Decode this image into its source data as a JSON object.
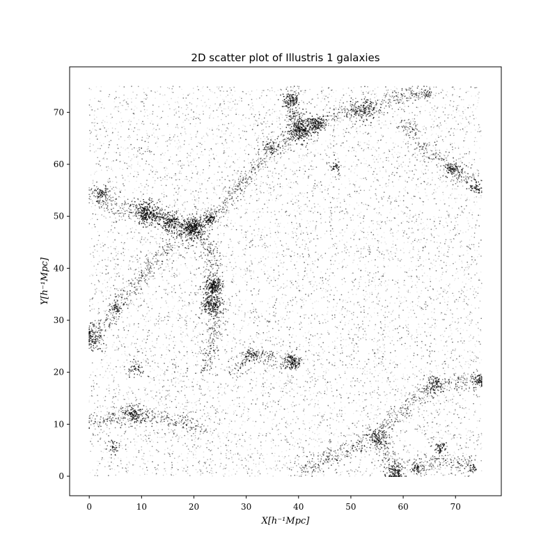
{
  "chart_data": {
    "type": "scatter",
    "title": "2D scatter plot of Illustris 1 galaxies",
    "xlabel": "X[h⁻¹Mpc]",
    "ylabel": "Y[h⁻¹Mpc]",
    "xlim": [
      -3.75,
      78.75
    ],
    "ylim": [
      -3.75,
      78.75
    ],
    "xticks": [
      0,
      10,
      20,
      30,
      40,
      50,
      60,
      70
    ],
    "yticks": [
      0,
      10,
      20,
      30,
      40,
      50,
      60,
      70
    ],
    "grid": false,
    "legend": "none",
    "marker_color": "#000000",
    "data_domain": [
      0,
      75
    ],
    "clusters": [
      {
        "x": 11,
        "y": 50.5,
        "r": 1.2,
        "n": 260
      },
      {
        "x": 15.5,
        "y": 49,
        "r": 1.0,
        "n": 160
      },
      {
        "x": 20,
        "y": 47.8,
        "r": 1.1,
        "n": 260
      },
      {
        "x": 23.8,
        "y": 36.5,
        "r": 0.9,
        "n": 180
      },
      {
        "x": 23.5,
        "y": 33,
        "r": 1.0,
        "n": 180
      },
      {
        "x": 40.3,
        "y": 66.8,
        "r": 1.2,
        "n": 260
      },
      {
        "x": 43.5,
        "y": 67.8,
        "r": 0.8,
        "n": 120
      },
      {
        "x": 38.5,
        "y": 72,
        "r": 0.8,
        "n": 110
      },
      {
        "x": 38.8,
        "y": 22,
        "r": 0.8,
        "n": 120
      },
      {
        "x": 58.5,
        "y": 0.7,
        "r": 1.0,
        "n": 130
      },
      {
        "x": 52.5,
        "y": 70.5,
        "r": 1.2,
        "n": 120
      },
      {
        "x": 69.5,
        "y": 59,
        "r": 0.8,
        "n": 80
      },
      {
        "x": 8.5,
        "y": 12,
        "r": 1.0,
        "n": 110
      },
      {
        "x": 55,
        "y": 7.5,
        "r": 0.9,
        "n": 90
      },
      {
        "x": 66,
        "y": 17.5,
        "r": 0.9,
        "n": 80
      },
      {
        "x": 74.5,
        "y": 18.5,
        "r": 0.7,
        "n": 60
      },
      {
        "x": 1,
        "y": 26.5,
        "r": 1.2,
        "n": 100
      },
      {
        "x": 67,
        "y": 5.5,
        "r": 0.6,
        "n": 50
      },
      {
        "x": 31,
        "y": 23.5,
        "r": 0.6,
        "n": 45
      },
      {
        "x": 5,
        "y": 32.3,
        "r": 0.5,
        "n": 35
      },
      {
        "x": 23,
        "y": 49.5,
        "r": 0.6,
        "n": 70
      },
      {
        "x": 2.5,
        "y": 54.5,
        "r": 0.7,
        "n": 55
      },
      {
        "x": 74,
        "y": 55.5,
        "r": 0.6,
        "n": 45
      },
      {
        "x": 47,
        "y": 59.5,
        "r": 0.6,
        "n": 40
      },
      {
        "x": 34.5,
        "y": 63.5,
        "r": 0.7,
        "n": 45
      },
      {
        "x": 9,
        "y": 20.5,
        "r": 0.7,
        "n": 45
      },
      {
        "x": 4.5,
        "y": 5.5,
        "r": 0.6,
        "n": 40
      },
      {
        "x": 62.5,
        "y": 1.5,
        "r": 0.6,
        "n": 45
      },
      {
        "x": 73,
        "y": 1.8,
        "r": 0.5,
        "n": 30
      },
      {
        "x": 64.5,
        "y": 73.5,
        "r": 0.5,
        "n": 30
      }
    ],
    "filaments": [
      [
        [
          0,
          54.5
        ],
        [
          6,
          51.5
        ],
        [
          11,
          50.5
        ],
        [
          16,
          49
        ],
        [
          20,
          48
        ],
        [
          23,
          49.5
        ]
      ],
      [
        [
          20,
          48
        ],
        [
          23,
          44
        ],
        [
          24,
          40
        ],
        [
          23.8,
          36.5
        ],
        [
          23.5,
          33
        ],
        [
          24,
          27
        ],
        [
          22,
          20
        ]
      ],
      [
        [
          23,
          49.5
        ],
        [
          28,
          55
        ],
        [
          33,
          61
        ],
        [
          37,
          64
        ],
        [
          40.3,
          66.8
        ],
        [
          43.5,
          67.8
        ],
        [
          48,
          70
        ],
        [
          52.5,
          70.5
        ],
        [
          58,
          72.5
        ],
        [
          64,
          74
        ]
      ],
      [
        [
          40.3,
          66.8
        ],
        [
          39,
          70
        ],
        [
          38.5,
          74.5
        ]
      ],
      [
        [
          0,
          10
        ],
        [
          4,
          11
        ],
        [
          8.5,
          12
        ],
        [
          13,
          11
        ],
        [
          18,
          10.5
        ],
        [
          22,
          8
        ]
      ],
      [
        [
          58.5,
          0.7
        ],
        [
          55,
          7.5
        ],
        [
          58,
          11
        ],
        [
          63,
          15
        ],
        [
          66,
          17.5
        ],
        [
          70,
          18
        ],
        [
          74.5,
          18.5
        ]
      ],
      [
        [
          60,
          68
        ],
        [
          65,
          62
        ],
        [
          69.5,
          59
        ],
        [
          74,
          55.5
        ]
      ],
      [
        [
          38.8,
          22
        ],
        [
          34,
          23
        ],
        [
          31,
          23.5
        ],
        [
          27,
          20
        ]
      ],
      [
        [
          55,
          7.5
        ],
        [
          50,
          5
        ],
        [
          45,
          3
        ],
        [
          40,
          1
        ]
      ],
      [
        [
          62,
          1.5
        ],
        [
          67,
          3.5
        ],
        [
          73,
          1.8
        ]
      ],
      [
        [
          0,
          26.5
        ],
        [
          3,
          30
        ],
        [
          5,
          32.3
        ],
        [
          8,
          36
        ],
        [
          12,
          41
        ],
        [
          16,
          45
        ],
        [
          20,
          48
        ]
      ]
    ],
    "field_points": 9000,
    "filament_points_per_unit": 14
  }
}
